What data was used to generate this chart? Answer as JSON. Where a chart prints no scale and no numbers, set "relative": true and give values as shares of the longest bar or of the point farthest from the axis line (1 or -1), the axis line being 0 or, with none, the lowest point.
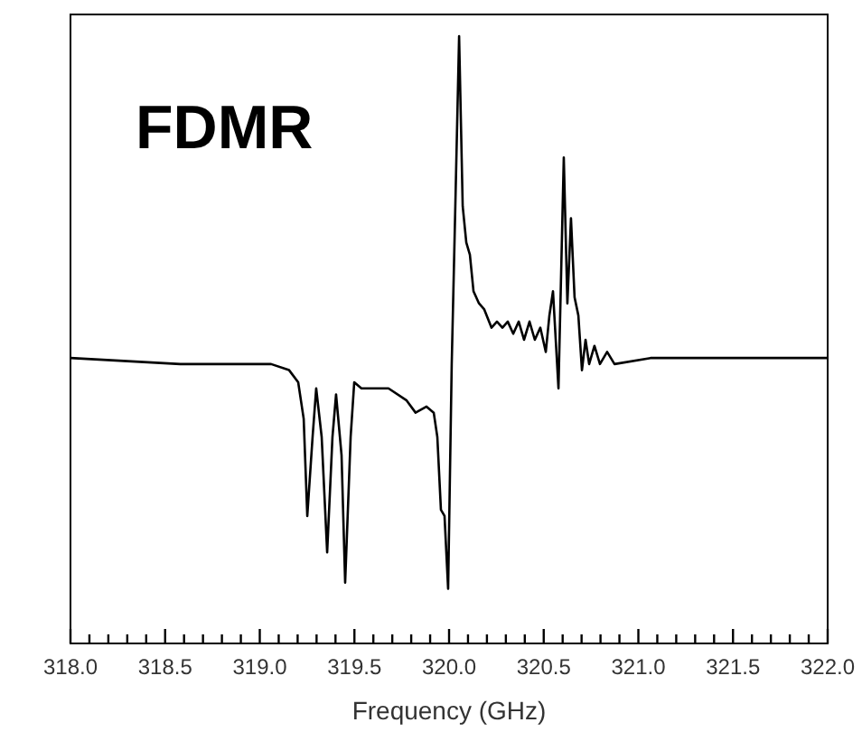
{
  "chart_data": {
    "type": "line",
    "title": "FDMR",
    "xlabel": "Frequency (GHz)",
    "relative": true,
    "xlim": [
      318.0,
      322.0
    ],
    "xticks": [
      {
        "value": 318.0,
        "label": "318.0"
      },
      {
        "value": 318.1,
        "label": null
      },
      {
        "value": 318.2,
        "label": null
      },
      {
        "value": 318.3,
        "label": null
      },
      {
        "value": 318.4,
        "label": null
      },
      {
        "value": 318.5,
        "label": "318.5"
      },
      {
        "value": 318.6,
        "label": null
      },
      {
        "value": 318.7,
        "label": null
      },
      {
        "value": 318.8,
        "label": null
      },
      {
        "value": 318.9,
        "label": null
      },
      {
        "value": 319.0,
        "label": "319.0"
      },
      {
        "value": 319.1,
        "label": null
      },
      {
        "value": 319.2,
        "label": null
      },
      {
        "value": 319.3,
        "label": null
      },
      {
        "value": 319.4,
        "label": null
      },
      {
        "value": 319.5,
        "label": "319.5"
      },
      {
        "value": 319.6,
        "label": null
      },
      {
        "value": 319.7,
        "label": null
      },
      {
        "value": 319.8,
        "label": null
      },
      {
        "value": 319.9,
        "label": null
      },
      {
        "value": 320.0,
        "label": "320.0"
      },
      {
        "value": 320.1,
        "label": null
      },
      {
        "value": 320.2,
        "label": null
      },
      {
        "value": 320.3,
        "label": null
      },
      {
        "value": 320.4,
        "label": null
      },
      {
        "value": 320.5,
        "label": "320.5"
      },
      {
        "value": 320.6,
        "label": null
      },
      {
        "value": 320.7,
        "label": null
      },
      {
        "value": 320.8,
        "label": null
      },
      {
        "value": 320.9,
        "label": null
      },
      {
        "value": 321.0,
        "label": "321.0"
      },
      {
        "value": 321.1,
        "label": null
      },
      {
        "value": 321.2,
        "label": null
      },
      {
        "value": 321.3,
        "label": null
      },
      {
        "value": 321.4,
        "label": null
      },
      {
        "value": 321.5,
        "label": "321.5"
      },
      {
        "value": 321.6,
        "label": null
      },
      {
        "value": 321.7,
        "label": null
      },
      {
        "value": 321.8,
        "label": null
      },
      {
        "value": 321.9,
        "label": null
      },
      {
        "value": 322.0,
        "label": "322.0"
      }
    ],
    "series": [
      {
        "color": "#000000",
        "x": [
          318.0,
          318.58,
          319.06,
          319.155,
          319.203,
          319.232,
          319.251,
          319.279,
          319.298,
          319.327,
          319.356,
          319.384,
          319.403,
          319.432,
          319.451,
          319.48,
          319.499,
          319.537,
          319.68,
          319.776,
          319.823,
          319.881,
          319.919,
          319.938,
          319.957,
          319.976,
          319.995,
          320.014,
          320.033,
          320.053,
          320.072,
          320.091,
          320.11,
          320.129,
          320.158,
          320.186,
          320.224,
          320.253,
          320.282,
          320.31,
          320.339,
          320.368,
          320.396,
          320.425,
          320.453,
          320.482,
          320.511,
          320.53,
          320.549,
          320.578,
          320.606,
          320.625,
          320.644,
          320.663,
          320.683,
          320.702,
          320.721,
          320.74,
          320.768,
          320.797,
          320.835,
          320.874,
          321.064,
          321.446,
          322.0
        ],
        "values": [
          0.47,
          0.46,
          0.46,
          0.45,
          0.43,
          0.37,
          0.21,
          0.34,
          0.42,
          0.34,
          0.15,
          0.34,
          0.41,
          0.31,
          0.1,
          0.34,
          0.43,
          0.42,
          0.42,
          0.4,
          0.38,
          0.39,
          0.38,
          0.34,
          0.22,
          0.21,
          0.09,
          0.46,
          0.72,
          1.0,
          0.72,
          0.66,
          0.64,
          0.58,
          0.56,
          0.55,
          0.52,
          0.53,
          0.52,
          0.53,
          0.51,
          0.53,
          0.5,
          0.53,
          0.5,
          0.52,
          0.48,
          0.54,
          0.58,
          0.42,
          0.8,
          0.56,
          0.7,
          0.57,
          0.54,
          0.45,
          0.5,
          0.46,
          0.49,
          0.46,
          0.48,
          0.46,
          0.47,
          0.47,
          0.47
        ]
      }
    ]
  }
}
